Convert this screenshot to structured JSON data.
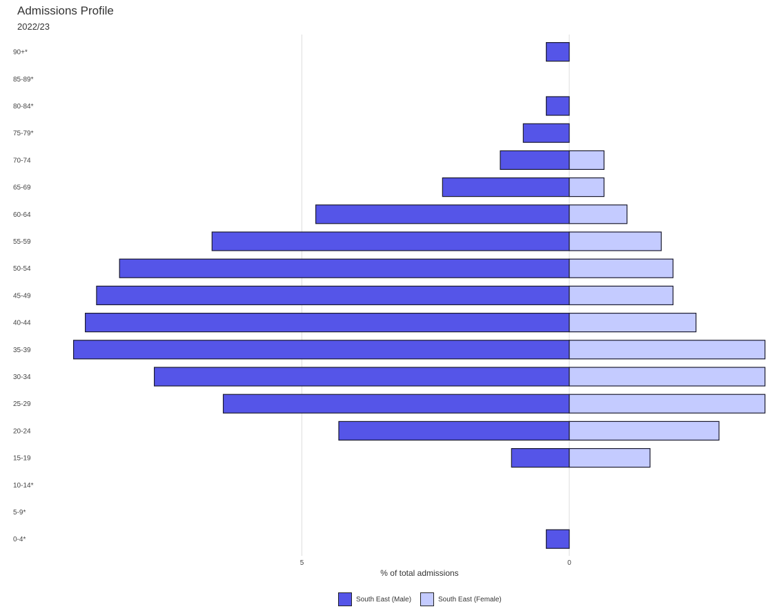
{
  "chart_data": {
    "type": "bar",
    "orientation": "horizontal",
    "title": "Admissions Profile",
    "subtitle": "2022/23",
    "xlabel": "% of total admissions",
    "ylabel": "",
    "grid": true,
    "legend_position": "bottom",
    "x_ticks": [
      {
        "value": 5,
        "label": "5"
      },
      {
        "value": 0,
        "label": "0"
      }
    ],
    "categories": [
      "90+*",
      "85-89*",
      "80-84*",
      "75-79*",
      "70-74",
      "65-69",
      "60-64",
      "55-59",
      "50-54",
      "45-49",
      "40-44",
      "35-39",
      "30-34",
      "25-29",
      "20-24",
      "15-19",
      "10-14*",
      "5-9*",
      "0-4*"
    ],
    "series": [
      {
        "name": "South East (Male)",
        "color": "#5555e8",
        "side": "left",
        "values": [
          0.43,
          0,
          0.43,
          0.86,
          1.29,
          2.37,
          4.74,
          6.68,
          8.41,
          8.84,
          9.05,
          9.27,
          7.76,
          6.47,
          4.31,
          1.08,
          0,
          0,
          0.43
        ]
      },
      {
        "name": "South East (Female)",
        "color": "#c4cbff",
        "side": "right",
        "values": [
          0,
          0,
          0,
          0,
          0.65,
          0.65,
          1.08,
          1.72,
          1.94,
          1.94,
          2.37,
          3.66,
          3.66,
          3.66,
          2.8,
          1.51,
          0,
          0,
          0
        ]
      }
    ]
  }
}
